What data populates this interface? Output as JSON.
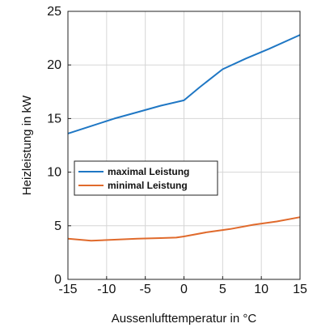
{
  "chart_data": {
    "type": "line",
    "xlabel": "Aussenlufttemperatur in °C",
    "ylabel": "Heizleistung in kW",
    "xlim": [
      -15,
      15
    ],
    "ylim": [
      0,
      25
    ],
    "xticks": [
      -15,
      -10,
      -5,
      0,
      5,
      10,
      15
    ],
    "yticks": [
      0,
      5,
      10,
      15,
      20,
      25
    ],
    "grid": true,
    "legend_position": "center-left",
    "series": [
      {
        "name": "maximal Leistung",
        "color": "#1f77c4",
        "x": [
          -15,
          -12,
          -9,
          -6,
          -3,
          0,
          2,
          5,
          8,
          11,
          15
        ],
        "y": [
          13.6,
          14.3,
          15.0,
          15.6,
          16.2,
          16.7,
          17.9,
          19.6,
          20.6,
          21.5,
          22.8
        ]
      },
      {
        "name": "minimal Leistung",
        "color": "#e06a2c",
        "x": [
          -15,
          -12,
          -9,
          -6,
          -3,
          -1,
          0,
          3,
          6,
          9,
          12,
          15
        ],
        "y": [
          3.8,
          3.6,
          3.7,
          3.8,
          3.85,
          3.9,
          4.0,
          4.4,
          4.7,
          5.1,
          5.4,
          5.8
        ]
      }
    ]
  }
}
